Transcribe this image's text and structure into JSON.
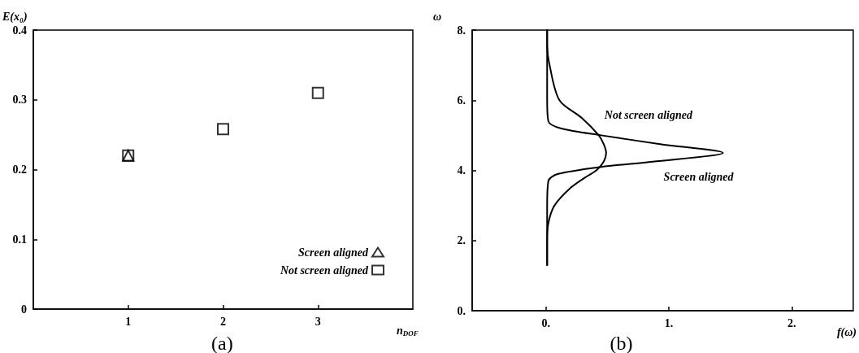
{
  "chart_data": [
    {
      "type": "scatter",
      "xlabel": "n$_{DOF}$",
      "ylabel": "E(x₀)",
      "annotations": [
        "(a)"
      ],
      "xlim": [
        0,
        4
      ],
      "xticks": [
        1,
        2,
        3
      ],
      "ylim": [
        0,
        0.4
      ],
      "yticks": [
        0,
        0.1,
        0.2,
        0.3,
        0.4
      ],
      "grid": false,
      "legend": "bottom right",
      "series": [
        {
          "name": "Screen aligned",
          "color": "#000000",
          "marker": "triangle",
          "x": [
            1
          ],
          "values": [
            0.22
          ]
        },
        {
          "name": "Not screen aligned",
          "color": "#000000",
          "marker": "square",
          "x": [
            1,
            2,
            3
          ],
          "values": [
            0.22,
            0.258,
            0.31
          ]
        }
      ]
    },
    {
      "type": "line",
      "xlabel": "f(ω)",
      "ylabel": "ω",
      "annotations": [
        "(b)"
      ],
      "xlim": [
        -0.6,
        2.5
      ],
      "xticks": [
        {
          "value": 0,
          "label": "0."
        },
        {
          "value": 1,
          "label": "1."
        },
        {
          "value": 2,
          "label": "2."
        }
      ],
      "ylim": [
        0,
        8
      ],
      "yticks": [
        {
          "value": 0,
          "label": "0."
        },
        {
          "value": 2,
          "label": "2."
        },
        {
          "value": 4,
          "label": "4."
        },
        {
          "value": 6,
          "label": "6."
        },
        {
          "value": 8,
          "label": "8."
        }
      ],
      "grid": false,
      "legend": false,
      "marker": "none",
      "line_style": "solid",
      "series": [
        {
          "name": "Not screen aligned",
          "color": "#000000",
          "x": [
            0.01,
            0.01,
            0.02,
            0.07,
            0.2,
            0.32,
            0.41,
            0.47,
            0.49,
            0.47,
            0.43,
            0.29,
            0.11,
            0.03,
            0.01,
            0.01
          ],
          "values": [
            1.3,
            2.0,
            2.5,
            3.0,
            3.5,
            3.8,
            4.0,
            4.25,
            4.5,
            4.75,
            5.0,
            5.5,
            6.0,
            7.0,
            7.6,
            8.0
          ]
        },
        {
          "name": "Screen aligned",
          "color": "#000000",
          "x": [
            0.01,
            0.01,
            0.02,
            0.1,
            0.45,
            0.87,
            1.44,
            0.93,
            0.45,
            0.12,
            0.02,
            0.01,
            0.01
          ],
          "values": [
            1.3,
            3.0,
            3.7,
            3.9,
            4.1,
            4.25,
            4.5,
            4.75,
            5.0,
            5.2,
            5.4,
            6.0,
            8.0
          ]
        }
      ]
    }
  ]
}
